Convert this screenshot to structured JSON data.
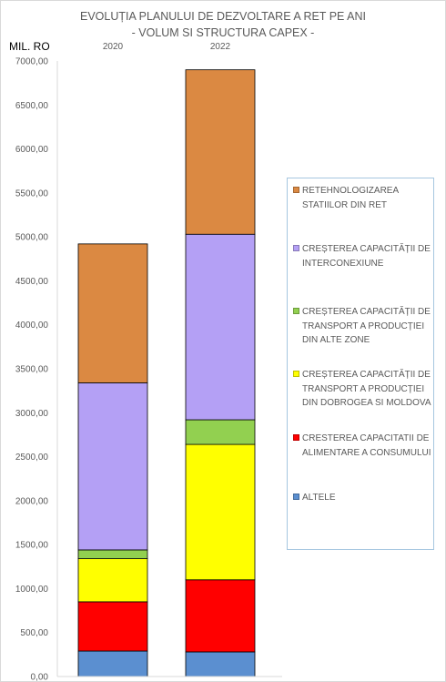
{
  "chart_data": {
    "type": "stacked-bar",
    "title": "EVOLUȚIA PLANULUI DE DEZVOLTARE A RET PE ANI",
    "subtitle": "- VOLUM SI STRUCTURA CAPEX -",
    "ylabel": "MIL. RO",
    "ylim": [
      0,
      7000
    ],
    "ytick_labels": [
      "0,00",
      "500,00",
      "1000,00",
      "1500,00",
      "2000,00",
      "2500,00",
      "3000,00",
      "3500,00",
      "4000,00",
      "4500,00",
      "5000,00",
      "5500,00",
      "6000,00",
      "6500,00",
      "7000,00"
    ],
    "categories": [
      "2020",
      "2022"
    ],
    "series": [
      {
        "name": "ALTELE",
        "color": "#5b8fd0",
        "values": [
          290,
          280
        ]
      },
      {
        "name": "CRESTEREA CAPACITATII DE ALIMENTARE A CONSUMULUI",
        "color": "#ff0000",
        "values": [
          560,
          820
        ]
      },
      {
        "name": "CREȘTEREA CAPACITĂȚII DE TRANSPORT A PRODUCȚIEI DIN DOBROGEA SI MOLDOVA",
        "color": "#ffff00",
        "values": [
          490,
          1540
        ]
      },
      {
        "name": "CREȘTEREA CAPACITĂȚII DE TRANSPORT A PRODUCȚIEI DIN ALTE ZONE",
        "color": "#92d050",
        "values": [
          100,
          280
        ]
      },
      {
        "name": "CREȘTEREA CAPACITĂȚII DE INTERCONEXIUNE",
        "color": "#b4a0f5",
        "values": [
          1900,
          2110
        ]
      },
      {
        "name": "RETEHNOLOGIZAREA STATIILOR DIN RET",
        "color": "#db8942",
        "values": [
          1580,
          1870
        ]
      }
    ],
    "legend_position": "right",
    "grid": false
  }
}
